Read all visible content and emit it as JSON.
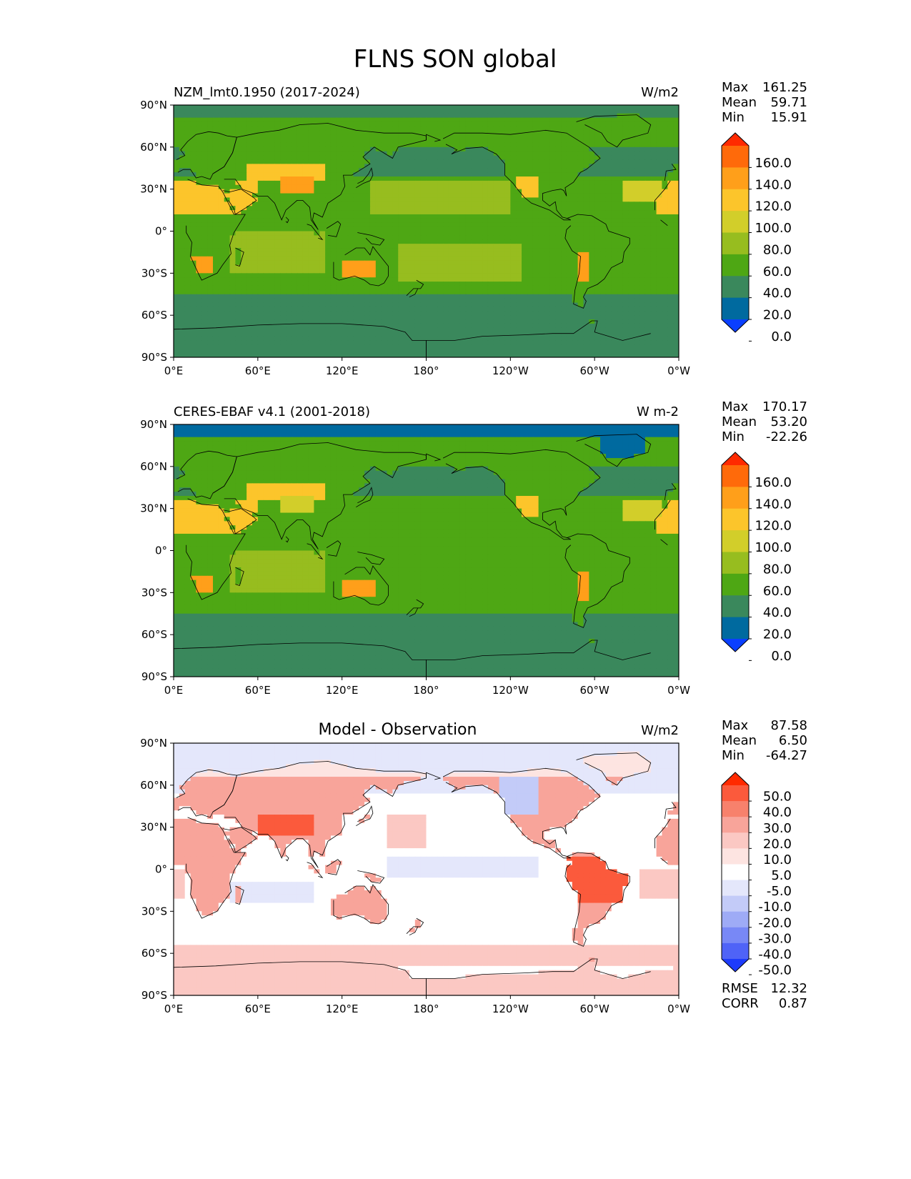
{
  "figure_title": "FLNS SON global",
  "chart_data": [
    {
      "type": "heatmap",
      "title_left": "NZM_lmt0.1950 (2017-2024)",
      "title_center": "",
      "units": "W/m2",
      "stats": [
        {
          "label": "Max",
          "value": "161.25"
        },
        {
          "label": "Mean",
          "value": "59.71"
        },
        {
          "label": "Min",
          "value": "15.91"
        }
      ],
      "extra_stats": [],
      "lon_ticks": [
        "0°E",
        "60°E",
        "120°E",
        "180°",
        "120°W",
        "60°W",
        "0°W"
      ],
      "lat_ticks": [
        "90°N",
        "60°N",
        "30°N",
        "0°",
        "30°S",
        "60°S",
        "90°S"
      ],
      "xlim": [
        0,
        360
      ],
      "ylim": [
        -90,
        90
      ],
      "colorbar": {
        "levels": [
          "160.0",
          "140.0",
          "120.0",
          "100.0",
          "80.0",
          "60.0",
          "40.0",
          "20.0",
          "0.0"
        ],
        "colors": [
          "#ff2a00",
          "#ff6a0a",
          "#ff9f1a",
          "#fcc52b",
          "#d2ce2a",
          "#97bd1f",
          "#4ea714",
          "#3a885c",
          "#006a9f",
          "#0a3fff"
        ]
      }
    },
    {
      "type": "heatmap",
      "title_left": "CERES-EBAF v4.1 (2001-2018)",
      "title_center": "",
      "units": "W m-2",
      "stats": [
        {
          "label": "Max",
          "value": "170.17"
        },
        {
          "label": "Mean",
          "value": "53.20"
        },
        {
          "label": "Min",
          "value": "-22.26"
        }
      ],
      "extra_stats": [],
      "lon_ticks": [
        "0°E",
        "60°E",
        "120°E",
        "180°",
        "120°W",
        "60°W",
        "0°W"
      ],
      "lat_ticks": [
        "90°N",
        "60°N",
        "30°N",
        "0°",
        "30°S",
        "60°S",
        "90°S"
      ],
      "xlim": [
        0,
        360
      ],
      "ylim": [
        -90,
        90
      ],
      "colorbar": {
        "levels": [
          "160.0",
          "140.0",
          "120.0",
          "100.0",
          "80.0",
          "60.0",
          "40.0",
          "20.0",
          "0.0"
        ],
        "colors": [
          "#ff2a00",
          "#ff6a0a",
          "#ff9f1a",
          "#fcc52b",
          "#d2ce2a",
          "#97bd1f",
          "#4ea714",
          "#3a885c",
          "#006a9f",
          "#0a3fff"
        ]
      }
    },
    {
      "type": "heatmap",
      "title_left": "",
      "title_center": "Model - Observation",
      "units": "W/m2",
      "stats": [
        {
          "label": "Max",
          "value": "87.58"
        },
        {
          "label": "Mean",
          "value": "6.50"
        },
        {
          "label": "Min",
          "value": "-64.27"
        }
      ],
      "extra_stats": [
        {
          "label": "RMSE",
          "value": "12.32"
        },
        {
          "label": "CORR",
          "value": "0.87"
        }
      ],
      "lon_ticks": [
        "0°E",
        "60°E",
        "120°E",
        "180°",
        "120°W",
        "60°W",
        "0°W"
      ],
      "lat_ticks": [
        "90°N",
        "60°N",
        "30°N",
        "0°",
        "30°S",
        "60°S",
        "90°S"
      ],
      "xlim": [
        0,
        360
      ],
      "ylim": [
        -90,
        90
      ],
      "colorbar": {
        "levels": [
          "50.0",
          "40.0",
          "30.0",
          "20.0",
          "10.0",
          "5.0",
          "-5.0",
          "-10.0",
          "-20.0",
          "-30.0",
          "-40.0",
          "-50.0"
        ],
        "colors": [
          "#ff2a00",
          "#fb5a3c",
          "#f7816c",
          "#f8a49a",
          "#fbc8c3",
          "#fde4e1",
          "#ffffff",
          "#e4e7fb",
          "#c3cbf8",
          "#9eabf6",
          "#7888f6",
          "#4f63f7",
          "#1d3bfb"
        ]
      }
    }
  ]
}
